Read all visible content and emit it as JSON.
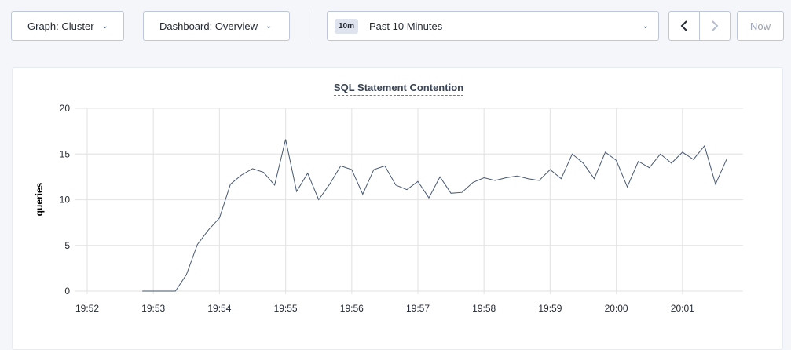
{
  "toolbar": {
    "graph_select": "Graph: Cluster",
    "dashboard_select": "Dashboard: Overview",
    "time_badge": "10m",
    "time_range": "Past 10 Minutes",
    "prev_icon": "chevron-left-icon",
    "next_icon": "chevron-right-icon",
    "now_label": "Now"
  },
  "chart_data": {
    "type": "line",
    "title": "SQL Statement Contention",
    "xlabel": "",
    "ylabel": "queries",
    "ylim": [
      0,
      20
    ],
    "yticks": [
      "0",
      "5",
      "10",
      "15",
      "20"
    ],
    "xticks": [
      "19:52",
      "19:53",
      "19:54",
      "19:55",
      "19:56",
      "19:57",
      "19:58",
      "19:59",
      "20:00",
      "20:01"
    ],
    "grid": true,
    "line_color": "#475872",
    "x": [
      "19:52:50",
      "19:53:00",
      "19:53:10",
      "19:53:20",
      "19:53:30",
      "19:53:40",
      "19:53:50",
      "19:54:00",
      "19:54:10",
      "19:54:20",
      "19:54:30",
      "19:54:40",
      "19:54:50",
      "19:55:00",
      "19:55:10",
      "19:55:20",
      "19:55:30",
      "19:55:40",
      "19:55:50",
      "19:56:00",
      "19:56:10",
      "19:56:20",
      "19:56:30",
      "19:56:40",
      "19:56:50",
      "19:57:00",
      "19:57:10",
      "19:57:20",
      "19:57:30",
      "19:57:40",
      "19:57:50",
      "19:58:00",
      "19:58:10",
      "19:58:20",
      "19:58:30",
      "19:58:40",
      "19:58:50",
      "19:59:00",
      "19:59:10",
      "19:59:20",
      "19:59:30",
      "19:59:40",
      "19:59:50",
      "20:00:00",
      "20:00:10",
      "20:00:20",
      "20:00:30",
      "20:00:40",
      "20:00:50",
      "20:01:00",
      "20:01:10",
      "20:01:20",
      "20:01:30",
      "20:01:40"
    ],
    "values": [
      0,
      0,
      0,
      0,
      1.8,
      5.1,
      6.7,
      8.0,
      11.7,
      12.7,
      13.4,
      13.0,
      11.6,
      16.6,
      10.9,
      12.9,
      10.0,
      11.7,
      13.7,
      13.3,
      10.6,
      13.3,
      13.7,
      11.6,
      11.1,
      12.0,
      10.2,
      12.5,
      10.7,
      10.8,
      11.9,
      12.4,
      12.1,
      12.4,
      12.6,
      12.3,
      12.1,
      13.3,
      12.3,
      15.0,
      14.0,
      12.3,
      15.2,
      14.3,
      11.4,
      14.2,
      13.5,
      15.0,
      14.0,
      15.2,
      14.4,
      15.9,
      11.7,
      14.4
    ]
  }
}
